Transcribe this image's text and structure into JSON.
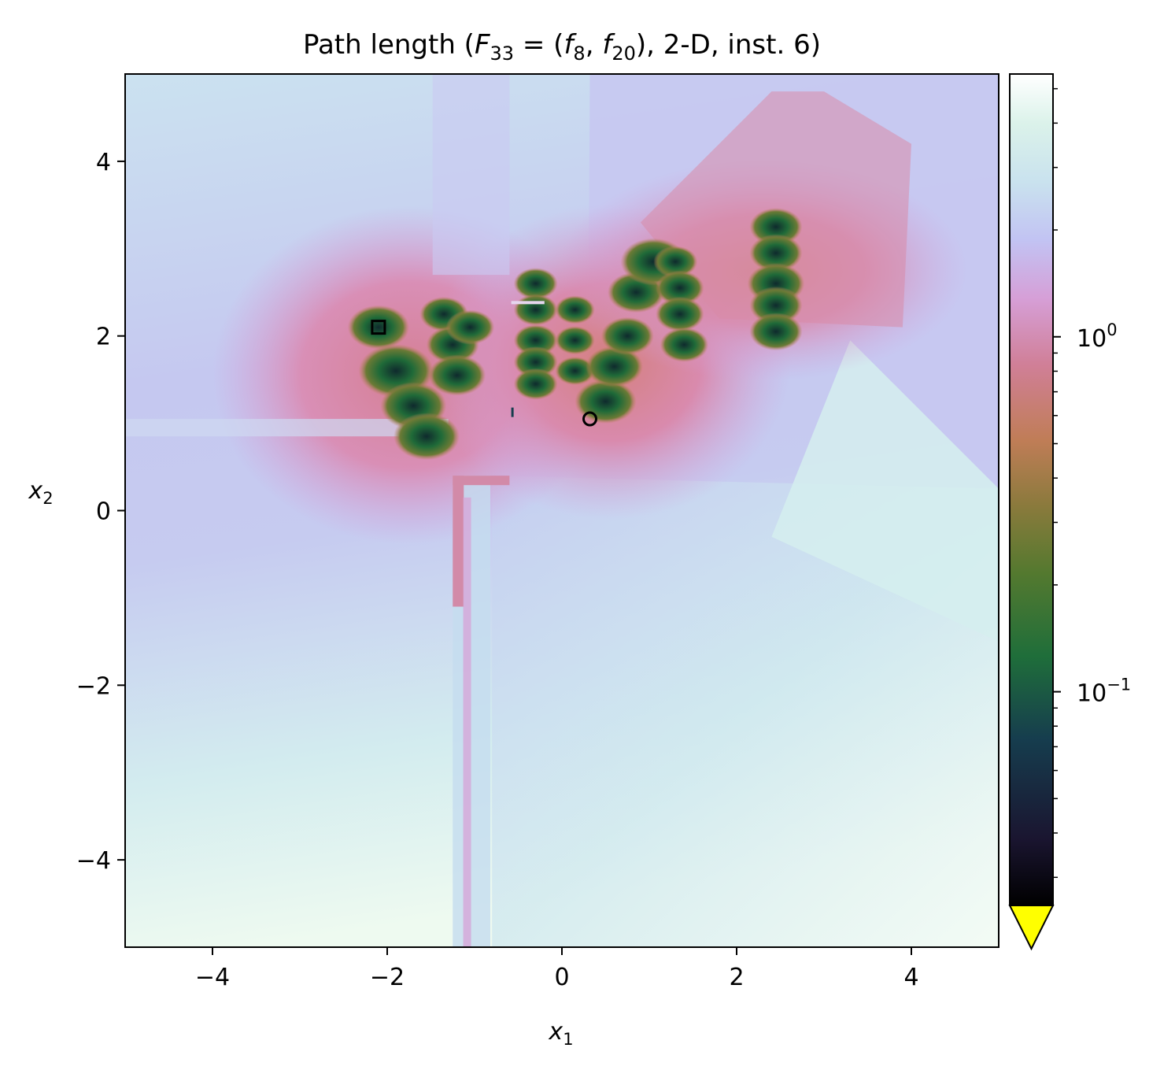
{
  "chart_data": {
    "type": "heatmap",
    "title": {
      "prefix": "Path length (",
      "func_main": "F",
      "func_sub": "33",
      "equals": " = (",
      "a_main": "f",
      "a_sub": "8",
      "comma": ", ",
      "b_main": "f",
      "b_sub": "20",
      "suffix": "), 2-D, inst. 6)"
    },
    "xlabel": {
      "main": "x",
      "sub": "1"
    },
    "ylabel": {
      "main": "x",
      "sub": "2"
    },
    "xlim": [
      -5,
      5
    ],
    "ylim": [
      -5,
      5
    ],
    "x_ticks": [
      {
        "value": -4,
        "label": "−4"
      },
      {
        "value": -2,
        "label": "−2"
      },
      {
        "value": 0,
        "label": "0"
      },
      {
        "value": 2,
        "label": "2"
      },
      {
        "value": 4,
        "label": "4"
      }
    ],
    "y_ticks": [
      {
        "value": 4,
        "label": "4"
      },
      {
        "value": 2,
        "label": "2"
      },
      {
        "value": 0,
        "label": "0"
      },
      {
        "value": -2,
        "label": "−2"
      },
      {
        "value": -4,
        "label": "−4"
      }
    ],
    "colorbar": {
      "scale": "log",
      "colormap": "cubehelix",
      "range": [
        0.025,
        5.5
      ],
      "extend": "min",
      "extend_color": "#ffff00",
      "major_ticks": [
        {
          "value": 1,
          "base": "10",
          "exp": "0"
        },
        {
          "value": 0.1,
          "base": "10",
          "exp": "−1"
        }
      ],
      "stops": [
        "#000000",
        "#1a1530",
        "#163d4e",
        "#1f6e3a",
        "#54792f",
        "#8a7a3c",
        "#c07d57",
        "#d07f97",
        "#d69fd7",
        "#c2c3f3",
        "#c9e2ee",
        "#dbf2ea",
        "#ffffff"
      ]
    },
    "markers": [
      {
        "type": "square",
        "x": -2.1,
        "y": 2.1
      },
      {
        "type": "circle",
        "x": 0.32,
        "y": 1.05
      }
    ],
    "colors": {
      "field_high": "#dff3ee",
      "field_mid": "#c4c6f0",
      "field_low": "#d880a0",
      "valley": "#1e6234",
      "valley_core": "#0f2a2d"
    }
  }
}
